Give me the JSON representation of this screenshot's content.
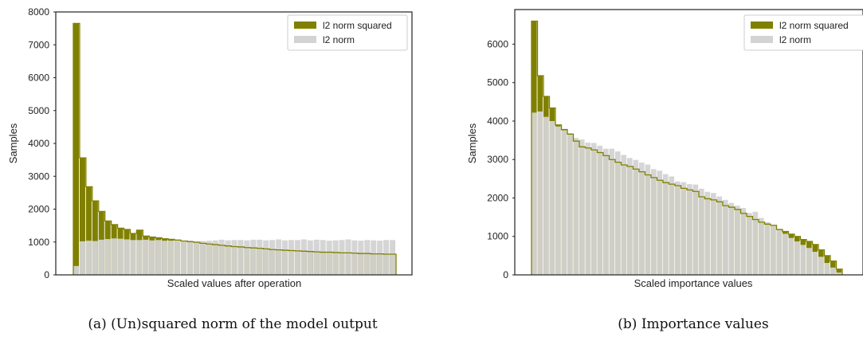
{
  "chart_data": [
    {
      "type": "bar",
      "caption": "(a) (Un)squared norm of the model output",
      "xlabel": "Scaled values after operation",
      "ylabel": "Samples",
      "ylim": [
        0,
        8000
      ],
      "yticks": [
        0,
        1000,
        2000,
        3000,
        4000,
        5000,
        6000,
        7000,
        8000
      ],
      "legend_position": "top-right",
      "series": [
        {
          "name": "l2 norm squared",
          "color": "#808000",
          "values": [
            7650,
            3560,
            2680,
            2250,
            1930,
            1640,
            1530,
            1420,
            1380,
            1260,
            1360,
            1180,
            1150,
            1130,
            1100,
            1080,
            1060,
            1030,
            1010,
            990,
            960,
            940,
            920,
            900,
            880,
            860,
            850,
            830,
            820,
            810,
            790,
            770,
            760,
            750,
            740,
            730,
            720,
            710,
            700,
            690,
            690,
            680,
            670,
            670,
            660,
            650,
            650,
            640,
            640,
            630,
            630
          ]
        },
        {
          "name": "l2 norm",
          "color": "#d3d3d3",
          "values": [
            270,
            1020,
            1040,
            1030,
            1070,
            1090,
            1110,
            1100,
            1080,
            1060,
            1060,
            1070,
            1050,
            1060,
            1040,
            1040,
            1050,
            1040,
            1050,
            1030,
            1030,
            1040,
            1050,
            1070,
            1050,
            1060,
            1060,
            1050,
            1070,
            1070,
            1050,
            1060,
            1080,
            1050,
            1060,
            1060,
            1080,
            1050,
            1070,
            1060,
            1040,
            1050,
            1060,
            1080,
            1050,
            1040,
            1060,
            1050,
            1040,
            1060,
            1060
          ]
        }
      ]
    },
    {
      "type": "bar",
      "caption": "(b) Importance values",
      "xlabel": "Scaled importance values",
      "ylabel": "Samples",
      "ylim": [
        0,
        6900
      ],
      "yticks": [
        0,
        1000,
        2000,
        3000,
        4000,
        5000,
        6000
      ],
      "legend_position": "top-right",
      "series": [
        {
          "name": "l2 norm squared",
          "color": "#808000",
          "values": [
            6600,
            5180,
            4640,
            4340,
            3900,
            3780,
            3660,
            3480,
            3330,
            3300,
            3250,
            3180,
            3100,
            3000,
            2930,
            2860,
            2820,
            2750,
            2680,
            2600,
            2530,
            2460,
            2400,
            2360,
            2320,
            2250,
            2210,
            2170,
            2030,
            1980,
            1950,
            1900,
            1800,
            1760,
            1700,
            1600,
            1520,
            1440,
            1370,
            1320,
            1290,
            1180,
            1130,
            1060,
            1000,
            920,
            870,
            790,
            650,
            500,
            360,
            150
          ]
        },
        {
          "name": "l2 norm",
          "color": "#d3d3d3",
          "values": [
            4220,
            4250,
            4110,
            4000,
            3860,
            3760,
            3690,
            3560,
            3520,
            3440,
            3430,
            3360,
            3280,
            3280,
            3210,
            3120,
            3040,
            2990,
            2920,
            2870,
            2750,
            2710,
            2620,
            2560,
            2430,
            2410,
            2360,
            2350,
            2240,
            2160,
            2130,
            2040,
            1950,
            1870,
            1800,
            1740,
            1610,
            1640,
            1480,
            1370,
            1280,
            1170,
            1070,
            960,
            870,
            780,
            700,
            600,
            470,
            310,
            190,
            60
          ]
        }
      ]
    }
  ]
}
